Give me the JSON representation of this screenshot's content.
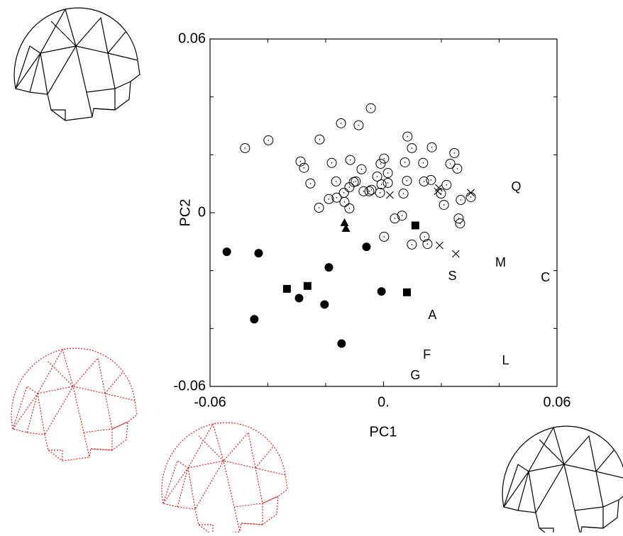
{
  "chart_data": {
    "type": "scatter",
    "x_label": "PC1",
    "y_label": "PC2",
    "xlim": [
      -0.06,
      0.06
    ],
    "ylim": [
      -0.06,
      0.06
    ],
    "xticks": [
      -0.06,
      {
        "value": 0,
        "label": "0."
      },
      0.06
    ],
    "yticks": [
      -0.06,
      0,
      0.06
    ],
    "xminorticks": [
      -0.04,
      -0.02,
      0.02,
      0.04
    ],
    "yminorticks": [
      -0.04,
      -0.02,
      0.02,
      0.04
    ],
    "color": "#000000",
    "series": [
      {
        "marker": "open-circle",
        "x": [
          -0.0479,
          -0.0398,
          -0.0044,
          -0.0147,
          -0.0086,
          -0.0221,
          0.0083,
          -0.0287,
          -0.0275,
          -0.0179,
          -0.0115,
          -0.0253,
          0.0002,
          0.0098,
          0.0167,
          0.0245,
          0.0137,
          0.0231,
          0.0255,
          0.0074,
          0.0015,
          -0.001,
          -0.0076,
          -0.0022,
          -0.0096,
          -0.0164,
          -0.0118,
          -0.0103,
          -0.0069,
          -0.0042,
          -0.0007,
          0.0069,
          0.0081,
          0.014,
          0.0218,
          0.0199,
          0.0209,
          0.0267,
          0.0302,
          0.026,
          0.0265,
          -0.0135,
          -0.0118,
          -0.0189,
          -0.0162,
          -0.0223,
          -0.0012,
          0.0039,
          0.0064,
          0.0002,
          0.0142,
          0.0152,
          0.0098,
          0.0164,
          -0.0049,
          0.0015,
          -0.0137
        ],
        "values": [
          0.0223,
          0.025,
          0.0361,
          0.0309,
          0.0302,
          0.0253,
          0.0263,
          0.0177,
          0.0155,
          0.0172,
          0.0182,
          0.0101,
          0.0187,
          0.0223,
          0.0226,
          0.0206,
          0.0172,
          0.0169,
          0.0152,
          0.0174,
          0.0137,
          0.0169,
          0.015,
          0.0125,
          0.0108,
          0.0108,
          0.0088,
          0.0106,
          0.0074,
          0.0079,
          0.0098,
          0.0066,
          0.011,
          0.0108,
          0.0096,
          0.0066,
          0.0027,
          0.0044,
          0.0054,
          -0.002,
          -0.0037,
          0.0037,
          0.0015,
          0.0047,
          0.0052,
          0.0017,
          0.0069,
          -0.002,
          -0.001,
          -0.0083,
          -0.0083,
          -0.0108,
          -0.011,
          0.0113,
          0.0074,
          0.0103,
          0.0069
        ]
      },
      {
        "marker": "cross",
        "x": [
          0.0022,
          0.0187,
          0.0302,
          0.0194,
          0.025,
          0.0191
        ],
        "values": [
          0.0061,
          0.0074,
          0.0069,
          -0.0113,
          -0.0142,
          0.0086
        ]
      },
      {
        "marker": "filled-circle",
        "x": [
          -0.0542,
          -0.0432,
          -0.0447,
          -0.0189,
          -0.0292,
          -0.0204,
          -0.0059,
          -0.0145,
          -0.0007
        ],
        "values": [
          -0.0135,
          -0.014,
          -0.0368,
          -0.0189,
          -0.0295,
          -0.0317,
          -0.0118,
          -0.0452,
          -0.0272
        ]
      },
      {
        "marker": "square",
        "x": [
          -0.0334,
          -0.0263,
          0.011,
          0.0081
        ],
        "values": [
          -0.0263,
          -0.0253,
          -0.0044,
          -0.0275
        ]
      },
      {
        "marker": "triangle",
        "x": [
          -0.0135,
          -0.013
        ],
        "values": [
          -0.0034,
          -0.0054
        ]
      },
      {
        "marker": "letter",
        "labels": [
          "Q",
          "M",
          "C",
          "S",
          "A",
          "F",
          "L",
          "G"
        ],
        "x": [
          0.0459,
          0.0405,
          0.056,
          0.0238,
          0.0169,
          0.015,
          0.0422,
          0.011
        ],
        "values": [
          0.0088,
          -0.0174,
          -0.0226,
          -0.0221,
          -0.0356,
          -0.0493,
          -0.0513,
          -0.0564
        ]
      }
    ]
  }
}
